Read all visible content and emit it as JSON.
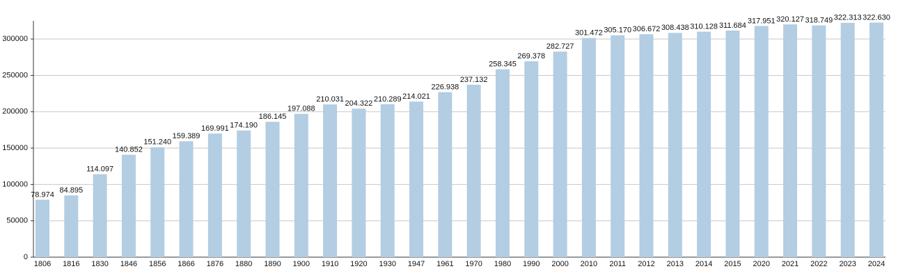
{
  "chart_data": {
    "type": "bar",
    "categories": [
      "1806",
      "1816",
      "1830",
      "1846",
      "1856",
      "1866",
      "1876",
      "1880",
      "1890",
      "1900",
      "1910",
      "1920",
      "1930",
      "1947",
      "1961",
      "1970",
      "1980",
      "1990",
      "2000",
      "2010",
      "2011",
      "2012",
      "2013",
      "2014",
      "2015",
      "2020",
      "2021",
      "2022",
      "2023",
      "2024"
    ],
    "values": [
      78974,
      84895,
      114097,
      140852,
      151240,
      159389,
      169991,
      174190,
      186145,
      197088,
      210031,
      204322,
      210289,
      214021,
      226938,
      237132,
      258345,
      269378,
      282727,
      301472,
      305170,
      306672,
      308438,
      310128,
      311684,
      317951,
      320127,
      318749,
      322313,
      322630
    ],
    "value_labels": [
      "78.974",
      "84.895",
      "114.097",
      "140.852",
      "151.240",
      "159.389",
      "169.991",
      "174.190",
      "186.145",
      "197.088",
      "210.031",
      "204.322",
      "210.289",
      "214.021",
      "226.938",
      "237.132",
      "258.345",
      "269.378",
      "282.727",
      "301.472",
      "305.170",
      "306.672",
      "308.438",
      "310.128",
      "311.684",
      "317.951",
      "320.127",
      "318.749",
      "322.313",
      "322.630"
    ],
    "color": "#b3cde3",
    "ylim": [
      0,
      325000
    ],
    "yticks": [
      0,
      50000,
      100000,
      150000,
      200000,
      250000,
      300000
    ],
    "grid": true
  }
}
